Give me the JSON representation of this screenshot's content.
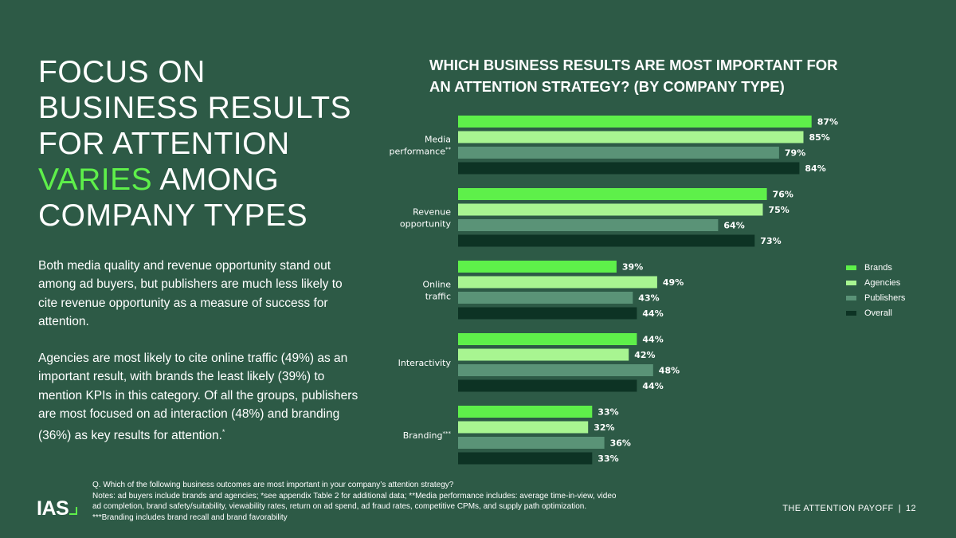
{
  "headline": {
    "line1": "FOCUS ON",
    "line2": "BUSINESS RESULTS",
    "line3": "FOR ATTENTION",
    "accent": "VARIES",
    "line4_rest": " AMONG",
    "line5": "COMPANY TYPES"
  },
  "body": {
    "para1": "Both media quality and revenue opportunity stand out among ad buyers, but publishers are much less likely to cite revenue opportunity as a measure of success for attention.",
    "para2": "Agencies are most likely to cite online traffic (49%) as an important result, with brands the least likely (39%) to mention KPIs in this category. Of all the groups, publishers are most focused on ad interaction (48%) and branding (36%) as key results for attention.",
    "para2_sup": "*"
  },
  "chart_title": "WHICH BUSINESS RESULTS ARE MOST IMPORTANT FOR AN ATTENTION STRATEGY? (BY COMPANY TYPE)",
  "colors": {
    "background": "#2d5a46",
    "Brands": "#5ef04a",
    "Agencies": "#a8f591",
    "Publishers": "#5a9377",
    "Overall": "#0d3324",
    "accent": "#5ef04a"
  },
  "chart_data": {
    "type": "bar",
    "orientation": "horizontal",
    "title": "WHICH BUSINESS RESULTS ARE MOST IMPORTANT FOR AN ATTENTION STRATEGY? (BY COMPANY TYPE)",
    "categories": [
      {
        "lines": [
          "Media",
          "performance"
        ],
        "sup": "**"
      },
      {
        "lines": [
          "Revenue",
          "opportunity"
        ],
        "sup": ""
      },
      {
        "lines": [
          "Online",
          "traffic"
        ],
        "sup": ""
      },
      {
        "lines": [
          "Interactivity"
        ],
        "sup": ""
      },
      {
        "lines": [
          "Branding"
        ],
        "sup": "***"
      }
    ],
    "series": [
      {
        "name": "Brands",
        "values": [
          87,
          76,
          39,
          44,
          33
        ]
      },
      {
        "name": "Agencies",
        "values": [
          85,
          75,
          49,
          42,
          32
        ]
      },
      {
        "name": "Publishers",
        "values": [
          79,
          64,
          43,
          48,
          36
        ]
      },
      {
        "name": "Overall",
        "values": [
          84,
          73,
          44,
          44,
          33
        ]
      }
    ],
    "value_suffix": "%",
    "xlim": [
      0,
      100
    ],
    "legend": "right",
    "grid": false
  },
  "notes": {
    "line1": "Q. Which of the following business outcomes are most important in your company’s attention strategy?",
    "line2": "Notes: ad buyers include brands and agencies; *see appendix Table 2 for additional data; **Media performance includes: average time-in-view, video",
    "line3": "ad completion, brand safety/suitability, viewability rates, return on ad spend, ad fraud rates, competitive CPMs, and supply path optimization.",
    "line4": "***Branding includes brand recall and brand favorability"
  },
  "logo_text": "IAS",
  "footer": {
    "title": "THE ATTENTION PAYOFF",
    "separator": "|",
    "page": "12"
  }
}
